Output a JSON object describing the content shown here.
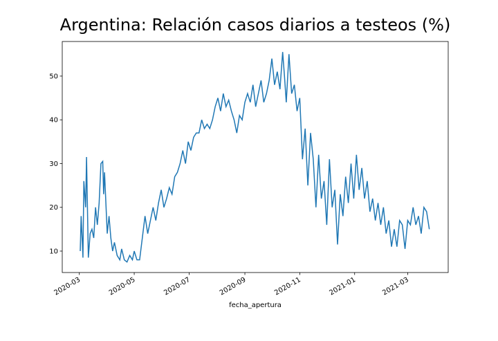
{
  "chart_data": {
    "type": "line",
    "title": "Argentina: Relación casos diarios a testeos (%)",
    "x_label": "fecha_apertura",
    "x": [
      "2020-03-02",
      "2020-03-03",
      "2020-03-05",
      "2020-03-06",
      "2020-03-08",
      "2020-03-09",
      "2020-03-11",
      "2020-03-13",
      "2020-03-15",
      "2020-03-17",
      "2020-03-19",
      "2020-03-21",
      "2020-03-23",
      "2020-03-25",
      "2020-03-27",
      "2020-03-28",
      "2020-03-29",
      "2020-04-01",
      "2020-04-03",
      "2020-04-05",
      "2020-04-07",
      "2020-04-09",
      "2020-04-12",
      "2020-04-15",
      "2020-04-17",
      "2020-04-20",
      "2020-04-23",
      "2020-04-26",
      "2020-04-29",
      "2020-05-01",
      "2020-05-04",
      "2020-05-07",
      "2020-05-10",
      "2020-05-13",
      "2020-05-16",
      "2020-05-19",
      "2020-05-22",
      "2020-05-25",
      "2020-05-28",
      "2020-05-31",
      "2020-06-03",
      "2020-06-06",
      "2020-06-09",
      "2020-06-12",
      "2020-06-15",
      "2020-06-18",
      "2020-06-21",
      "2020-06-24",
      "2020-06-27",
      "2020-06-30",
      "2020-07-03",
      "2020-07-06",
      "2020-07-09",
      "2020-07-12",
      "2020-07-15",
      "2020-07-18",
      "2020-07-21",
      "2020-07-24",
      "2020-07-27",
      "2020-07-30",
      "2020-08-02",
      "2020-08-05",
      "2020-08-08",
      "2020-08-11",
      "2020-08-14",
      "2020-08-17",
      "2020-08-20",
      "2020-08-23",
      "2020-08-26",
      "2020-08-29",
      "2020-09-01",
      "2020-09-04",
      "2020-09-07",
      "2020-09-10",
      "2020-09-13",
      "2020-09-16",
      "2020-09-19",
      "2020-09-22",
      "2020-09-25",
      "2020-09-28",
      "2020-10-01",
      "2020-10-04",
      "2020-10-07",
      "2020-10-10",
      "2020-10-13",
      "2020-10-15",
      "2020-10-17",
      "2020-10-20",
      "2020-10-23",
      "2020-10-26",
      "2020-10-29",
      "2020-11-01",
      "2020-11-04",
      "2020-11-07",
      "2020-11-10",
      "2020-11-13",
      "2020-11-16",
      "2020-11-19",
      "2020-11-22",
      "2020-11-25",
      "2020-11-28",
      "2020-12-01",
      "2020-12-04",
      "2020-12-07",
      "2020-12-10",
      "2020-12-13",
      "2020-12-16",
      "2020-12-19",
      "2020-12-22",
      "2020-12-25",
      "2020-12-28",
      "2020-12-31",
      "2021-01-03",
      "2021-01-06",
      "2021-01-09",
      "2021-01-12",
      "2021-01-15",
      "2021-01-18",
      "2021-01-21",
      "2021-01-24",
      "2021-01-27",
      "2021-01-30",
      "2021-02-02",
      "2021-02-05",
      "2021-02-08",
      "2021-02-11",
      "2021-02-14",
      "2021-02-17",
      "2021-02-20",
      "2021-02-23",
      "2021-02-26",
      "2021-03-01",
      "2021-03-04",
      "2021-03-07",
      "2021-03-10",
      "2021-03-13",
      "2021-03-16",
      "2021-03-19",
      "2021-03-22",
      "2021-03-25"
    ],
    "series": [
      {
        "color": "#1f77b4",
        "values": [
          10,
          18,
          8.5,
          26,
          20,
          31.5,
          8.5,
          14,
          15,
          13,
          20,
          16,
          21,
          30,
          30.5,
          23,
          28,
          14,
          18,
          13,
          10,
          12,
          9,
          8,
          10.5,
          8,
          7.5,
          9,
          8,
          10,
          8,
          8,
          13,
          18,
          14,
          17,
          20,
          17,
          21,
          24,
          20,
          22,
          24.5,
          23,
          27,
          28,
          30,
          33,
          30,
          35,
          33,
          36,
          37,
          37,
          40,
          38,
          39,
          38,
          40,
          43,
          45,
          42,
          46,
          43,
          44.5,
          42,
          40,
          37,
          41,
          40,
          44,
          46,
          44,
          48,
          43,
          46,
          49,
          44,
          46,
          49,
          54,
          48,
          51,
          47,
          55.5,
          50,
          44,
          55,
          46,
          48,
          42,
          45,
          31,
          38,
          25,
          37,
          31,
          20,
          32,
          22,
          26,
          16,
          31,
          20,
          24,
          11.5,
          23,
          18,
          27,
          21,
          30,
          22,
          32,
          24,
          29,
          22,
          26,
          19,
          22,
          17,
          21,
          16,
          20,
          14,
          17,
          11,
          15,
          11,
          17,
          16,
          10.5,
          17,
          16,
          20,
          16,
          18,
          14,
          20,
          19,
          15
        ]
      }
    ],
    "xlim": [
      "2020-02-11",
      "2021-04-15"
    ],
    "xticks": [
      {
        "value": "2020-03-01",
        "label": "2020-03"
      },
      {
        "value": "2020-05-01",
        "label": "2020-05"
      },
      {
        "value": "2020-07-01",
        "label": "2020-07"
      },
      {
        "value": "2020-09-01",
        "label": "2020-09"
      },
      {
        "value": "2020-11-01",
        "label": "2020-11"
      },
      {
        "value": "2021-01-01",
        "label": "2021-01"
      },
      {
        "value": "2021-03-01",
        "label": "2021-03"
      }
    ],
    "ylim": [
      5.1,
      57.9
    ],
    "yticks": [
      10,
      20,
      30,
      40,
      50
    ]
  }
}
